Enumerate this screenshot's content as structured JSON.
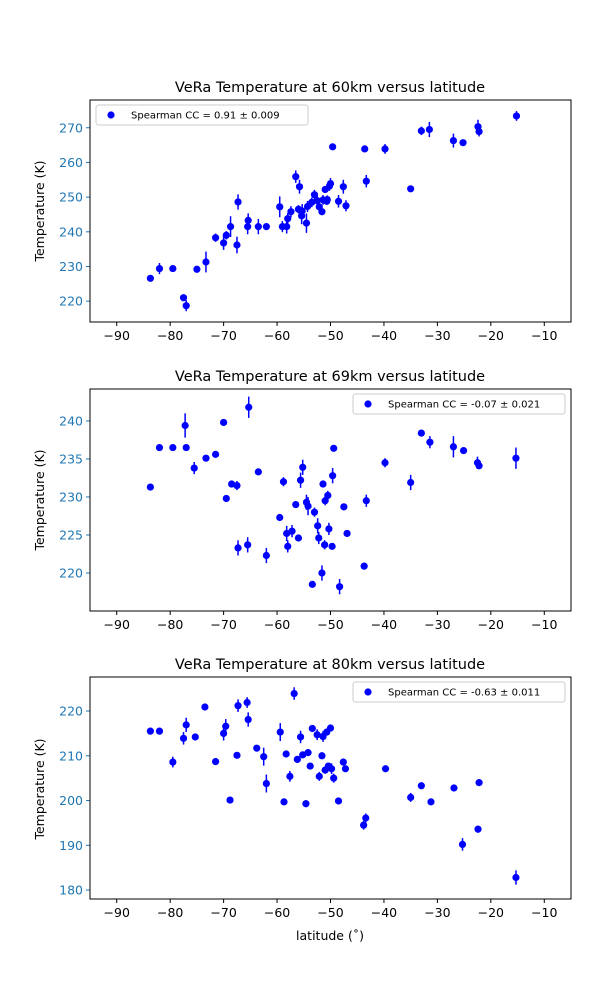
{
  "colors": {
    "marker": "#0000ff",
    "accent": "#1f77b4"
  },
  "chart_data": [
    {
      "type": "scatter",
      "title": "VeRa Temperature at 60km versus latitude",
      "xlabel": "",
      "ylabel": "Temperature (K)",
      "xlim": [
        -95,
        -5
      ],
      "ylim": [
        214,
        278
      ],
      "xticks": [
        -90,
        -80,
        -70,
        -60,
        -50,
        -40,
        -30,
        -20,
        -10
      ],
      "yticks": [
        220,
        230,
        240,
        250,
        260,
        270
      ],
      "legend": {
        "label": "Spearman CC =  0.91 ±  0.009",
        "placement": "upper left"
      },
      "points": [
        [
          -83.7,
          226.6,
          0.6
        ],
        [
          -82,
          229.4,
          1.6
        ],
        [
          -79.5,
          229.4,
          0.6
        ],
        [
          -77.5,
          221,
          0.8
        ],
        [
          -77,
          218.7,
          1.6
        ],
        [
          -75,
          229.2,
          0.8
        ],
        [
          -73.3,
          231.3,
          3
        ],
        [
          -71.5,
          238.3,
          1.2
        ],
        [
          -70,
          236.8,
          2
        ],
        [
          -69.5,
          239,
          1.2
        ],
        [
          -68.7,
          241.5,
          3
        ],
        [
          -67.5,
          236.2,
          2.4
        ],
        [
          -67.3,
          248.6,
          2.2
        ],
        [
          -65.5,
          241.5,
          2.2
        ],
        [
          -65.4,
          243.3,
          2
        ],
        [
          -63.5,
          241.5,
          2.2
        ],
        [
          -62,
          241.5,
          0.8
        ],
        [
          -59.5,
          247.2,
          3
        ],
        [
          -59,
          241.5,
          1.6
        ],
        [
          -58.2,
          241.5,
          2
        ],
        [
          -58,
          243.8,
          1.6
        ],
        [
          -57.4,
          245.8,
          1.6
        ],
        [
          -56.5,
          255.9,
          1.8
        ],
        [
          -56,
          246.5,
          1.2
        ],
        [
          -55.8,
          253,
          2
        ],
        [
          -55.4,
          244.6,
          2.4
        ],
        [
          -55.3,
          246,
          2
        ],
        [
          -54.5,
          242.5,
          2.8
        ],
        [
          -54.3,
          247.3,
          1.6
        ],
        [
          -53.5,
          248.5,
          1.4
        ],
        [
          -53,
          250.7,
          1.4
        ],
        [
          -52.5,
          249,
          1.6
        ],
        [
          -52.1,
          247.2,
          1.4
        ],
        [
          -51.6,
          245.8,
          1
        ],
        [
          -51.4,
          249.2,
          1.4
        ],
        [
          -51,
          252.2,
          1
        ],
        [
          -50.7,
          248.8,
          1
        ],
        [
          -50.6,
          249.3,
          1.2
        ],
        [
          -50.2,
          253.2,
          1.4
        ],
        [
          -50,
          253.9,
          1.6
        ],
        [
          -49.6,
          264.5,
          0.8
        ],
        [
          -48.5,
          248.8,
          1.8
        ],
        [
          -47.6,
          253,
          2
        ],
        [
          -47.1,
          247.5,
          1.6
        ],
        [
          -43.6,
          263.9,
          0.8
        ],
        [
          -43.3,
          254.6,
          1.8
        ],
        [
          -39.8,
          263.9,
          1.4
        ],
        [
          -35,
          252.4,
          0.8
        ],
        [
          -33,
          269.1,
          1.2
        ],
        [
          -31.5,
          269.5,
          2.2
        ],
        [
          -27,
          266.3,
          2
        ],
        [
          -25.2,
          265.7,
          0.8
        ],
        [
          -22.4,
          270.3,
          2
        ],
        [
          -22.2,
          268.9,
          1.4
        ],
        [
          -15.2,
          273.4,
          1.4
        ]
      ]
    },
    {
      "type": "scatter",
      "title": "VeRa Temperature at 69km versus latitude",
      "xlabel": "",
      "ylabel": "Temperature (K)",
      "xlim": [
        -95,
        -5
      ],
      "ylim": [
        215,
        244.2
      ],
      "xticks": [
        -90,
        -80,
        -70,
        -60,
        -50,
        -40,
        -30,
        -20,
        -10
      ],
      "yticks": [
        220,
        225,
        230,
        235,
        240
      ],
      "legend": {
        "label": "Spearman CC = -0.07 ±  0.021",
        "placement": "upper right"
      },
      "points": [
        [
          -83.7,
          231.3,
          0.4
        ],
        [
          -82,
          236.5,
          0.4
        ],
        [
          -79.5,
          236.5,
          0.4
        ],
        [
          -77.2,
          239.4,
          1.6
        ],
        [
          -77,
          236.5,
          0.4
        ],
        [
          -75.5,
          233.8,
          0.8
        ],
        [
          -73.3,
          235.1,
          0.4
        ],
        [
          -71.5,
          235.6,
          0.4
        ],
        [
          -70,
          239.8,
          0.4
        ],
        [
          -69.5,
          229.8,
          0.4
        ],
        [
          -68.5,
          231.7,
          0.4
        ],
        [
          -67.5,
          231.5,
          0.6
        ],
        [
          -67.3,
          223.3,
          1
        ],
        [
          -65.5,
          223.7,
          1
        ],
        [
          -65.3,
          241.8,
          1.4
        ],
        [
          -63.5,
          233.3,
          0.4
        ],
        [
          -62,
          222.3,
          1
        ],
        [
          -59.5,
          227.3,
          0.4
        ],
        [
          -58.8,
          232,
          0.6
        ],
        [
          -58.2,
          225.2,
          1
        ],
        [
          -58,
          223.5,
          0.8
        ],
        [
          -57.2,
          225.5,
          0.8
        ],
        [
          -56.5,
          229,
          0.4
        ],
        [
          -56,
          224.6,
          0.4
        ],
        [
          -55.6,
          232.2,
          1
        ],
        [
          -55.2,
          233.9,
          1
        ],
        [
          -54.5,
          229.3,
          1
        ],
        [
          -54.2,
          228.8,
          1.2
        ],
        [
          -53.4,
          218.5,
          0.4
        ],
        [
          -53,
          228,
          0.6
        ],
        [
          -52.4,
          226.2,
          1
        ],
        [
          -52.2,
          224.6,
          0.8
        ],
        [
          -51.6,
          220,
          1
        ],
        [
          -51.4,
          231.7,
          0.4
        ],
        [
          -51.1,
          223.7,
          0.6
        ],
        [
          -51,
          229.5,
          0.6
        ],
        [
          -50.5,
          230.2,
          0.6
        ],
        [
          -50.3,
          225.8,
          0.8
        ],
        [
          -49.7,
          223.5,
          0.4
        ],
        [
          -49.6,
          232.8,
          1
        ],
        [
          -49.4,
          236.4,
          0.4
        ],
        [
          -48.3,
          218.2,
          1
        ],
        [
          -47.5,
          228.7,
          0.4
        ],
        [
          -46.9,
          225.2,
          0.4
        ],
        [
          -43.7,
          220.9,
          0.4
        ],
        [
          -43.3,
          229.5,
          0.8
        ],
        [
          -39.8,
          234.5,
          0.6
        ],
        [
          -35,
          231.9,
          1
        ],
        [
          -33,
          238.4,
          0.4
        ],
        [
          -31.4,
          237.2,
          0.8
        ],
        [
          -27,
          236.6,
          1.4
        ],
        [
          -25.1,
          236.1,
          0.4
        ],
        [
          -22.5,
          234.5,
          0.8
        ],
        [
          -22.2,
          234.1,
          0.4
        ],
        [
          -15.3,
          235.1,
          1.4
        ]
      ]
    },
    {
      "type": "scatter",
      "title": "VeRa Temperature at 80km versus latitude",
      "xlabel": "latitude (˚)",
      "ylabel": "Temperature (K)",
      "xlim": [
        -95,
        -5
      ],
      "ylim": [
        178,
        227.6
      ],
      "xticks": [
        -90,
        -80,
        -70,
        -60,
        -50,
        -40,
        -30,
        -20,
        -10
      ],
      "yticks": [
        180,
        190,
        200,
        210,
        220
      ],
      "legend": {
        "label": "Spearman CC = -0.63 ±  0.011",
        "placement": "upper right"
      },
      "points": [
        [
          -83.7,
          215.5,
          0.4
        ],
        [
          -82,
          215.5,
          0.4
        ],
        [
          -79.5,
          208.6,
          1.2
        ],
        [
          -77.5,
          213.9,
          1.4
        ],
        [
          -77,
          216.9,
          1.6
        ],
        [
          -75.3,
          214.2,
          0.6
        ],
        [
          -73.5,
          220.9,
          0.4
        ],
        [
          -71.5,
          208.7,
          0.4
        ],
        [
          -70,
          215,
          1.6
        ],
        [
          -69.6,
          216.6,
          1.6
        ],
        [
          -68.8,
          200.1,
          0.4
        ],
        [
          -67.5,
          210.1,
          0.4
        ],
        [
          -67.3,
          221.2,
          1.4
        ],
        [
          -65.6,
          221.9,
          1.2
        ],
        [
          -65.4,
          218.1,
          1.6
        ],
        [
          -63.8,
          211.7,
          0.4
        ],
        [
          -62.5,
          209.8,
          2
        ],
        [
          -62,
          203.8,
          2
        ],
        [
          -59.4,
          215.3,
          2
        ],
        [
          -58.7,
          199.7,
          0.4
        ],
        [
          -58.3,
          210.4,
          0.4
        ],
        [
          -57.6,
          205.4,
          1.2
        ],
        [
          -56.8,
          223.9,
          1.4
        ],
        [
          -56.2,
          209.2,
          0.6
        ],
        [
          -55.6,
          214.2,
          1.4
        ],
        [
          -55.2,
          210.2,
          0.6
        ],
        [
          -54.6,
          199.3,
          0.8
        ],
        [
          -54.2,
          210.7,
          0.4
        ],
        [
          -53.8,
          207.7,
          0.4
        ],
        [
          -53.4,
          216.1,
          0.6
        ],
        [
          -52.5,
          214.7,
          1.2
        ],
        [
          -52.1,
          205.4,
          1
        ],
        [
          -51.6,
          210,
          0.4
        ],
        [
          -51.4,
          214.3,
          1.2
        ],
        [
          -51,
          206.8,
          0.8
        ],
        [
          -50.7,
          215.3,
          0.8
        ],
        [
          -50.4,
          207.7,
          0.4
        ],
        [
          -50,
          216.2,
          0.6
        ],
        [
          -49.8,
          207.1,
          1.2
        ],
        [
          -49.4,
          205,
          1
        ],
        [
          -48.5,
          199.9,
          0.4
        ],
        [
          -47.6,
          208.6,
          0.8
        ],
        [
          -47.2,
          207.1,
          0.4
        ],
        [
          -43.8,
          194.5,
          1
        ],
        [
          -43.4,
          196.1,
          1
        ],
        [
          -39.7,
          207.1,
          0.4
        ],
        [
          -35,
          200.7,
          1
        ],
        [
          -33,
          203.3,
          0.4
        ],
        [
          -31.2,
          199.7,
          0.4
        ],
        [
          -26.9,
          202.8,
          0.4
        ],
        [
          -25.3,
          190.2,
          1.4
        ],
        [
          -22.4,
          193.6,
          0.8
        ],
        [
          -22.2,
          204,
          0.4
        ],
        [
          -15.3,
          182.8,
          1.6
        ]
      ]
    }
  ]
}
